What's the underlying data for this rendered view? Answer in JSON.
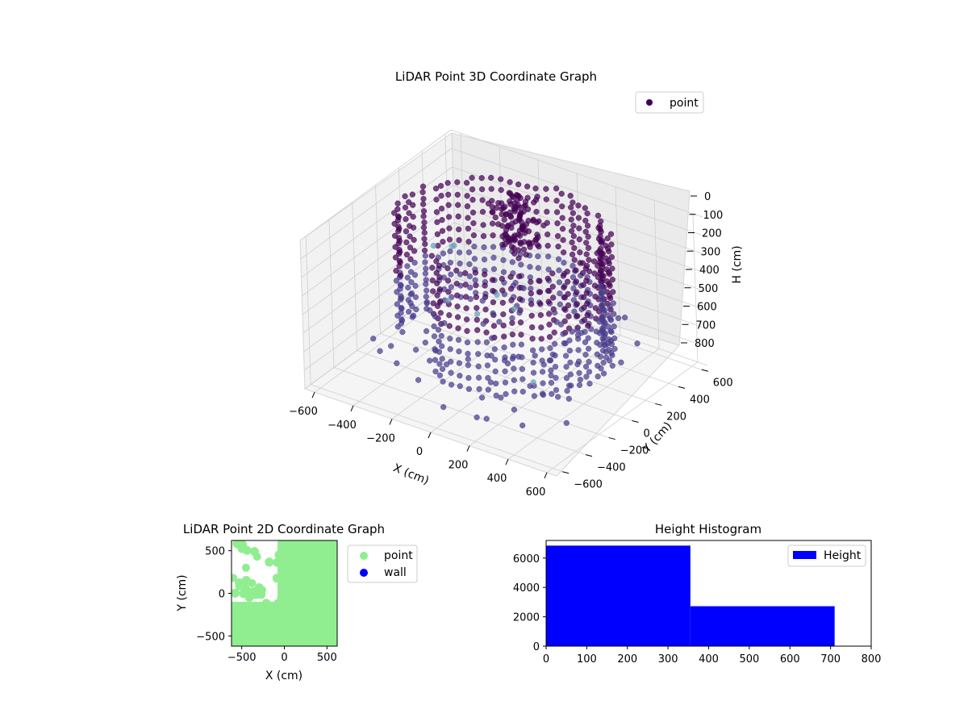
{
  "chart_data": [
    {
      "type": "scatter3d",
      "title": "LiDAR Point 3D Coordinate Graph",
      "xlabel": "X (cm)",
      "ylabel": "Y (cm)",
      "zlabel": "H (cm)",
      "x_ticks": [
        "−600",
        "−400",
        "−200",
        "0",
        "200",
        "400",
        "600"
      ],
      "y_ticks": [
        "−600",
        "−400",
        "−200",
        "0",
        "200",
        "400",
        "600"
      ],
      "z_ticks": [
        "0",
        "100",
        "200",
        "300",
        "400",
        "500",
        "600",
        "700",
        "800"
      ],
      "xlim": [
        -650,
        650
      ],
      "ylim": [
        -650,
        650
      ],
      "zlim": [
        0,
        800
      ],
      "z_inverted": true,
      "legend": {
        "labels": [
          "point"
        ],
        "position": "upper-right"
      },
      "colors": {
        "point_dark": "#440154",
        "point_mid": "#4a3c8c",
        "point_light": "#6a9fb5"
      }
    },
    {
      "type": "scatter",
      "title": "LiDAR Point 2D Coordinate Graph",
      "xlabel": "X (cm)",
      "ylabel": "Y (cm)",
      "x_ticks": [
        "−500",
        "0",
        "500"
      ],
      "y_ticks": [
        "500",
        "0",
        "−500"
      ],
      "xlim": [
        -620,
        620
      ],
      "ylim": [
        -620,
        620
      ],
      "legend": {
        "labels": [
          "point",
          "wall"
        ],
        "position": "outside-right"
      },
      "colors": {
        "point": "#90ee90",
        "wall": "#0000ff"
      }
    },
    {
      "type": "bar",
      "title": "Height Histogram",
      "bins": [
        [
          0,
          355
        ],
        [
          355,
          710
        ]
      ],
      "values": [
        6850,
        2720
      ],
      "x_ticks": [
        "0",
        "100",
        "200",
        "300",
        "400",
        "500",
        "600",
        "700",
        "800"
      ],
      "y_ticks": [
        "0",
        "2000",
        "4000",
        "6000"
      ],
      "xlim": [
        0,
        800
      ],
      "ylim": [
        0,
        7200
      ],
      "legend": {
        "labels": [
          "Height"
        ],
        "position": "upper-right"
      },
      "colors": {
        "bar": "#0000ff"
      }
    }
  ]
}
